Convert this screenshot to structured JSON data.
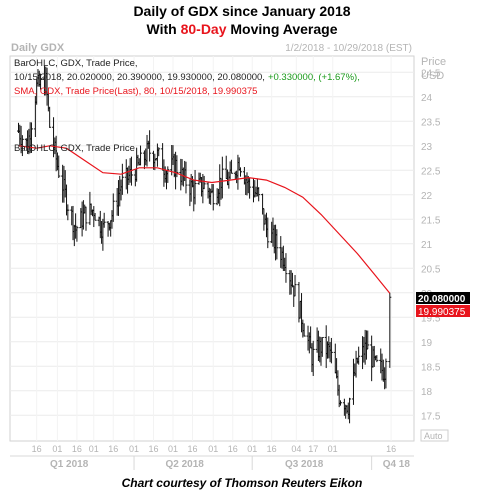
{
  "header": {
    "title_line1": "Daily of GDX since January 2018",
    "title_line2_pre": "With ",
    "title_line2_highlight": "80-Day",
    "title_line2_post": " Moving Average"
  },
  "chart_header": {
    "symbol_label": "Daily GDX",
    "date_range": "1/2/2018 - 10/29/2018 (EST)",
    "price_label": "Price",
    "currency_label": "USD"
  },
  "legend": {
    "bar_line1": "BarOHLC, GDX, Trade Price,",
    "bar_line2_values": "10/15/2018, 20.020000, 20.390000, 19.930000, 20.080000,",
    "bar_line2_change": "+0.330000, (+1.67%),",
    "sma_line": "SMA, GDX, Trade Price(Last), 80, 10/15/2018, 19.990375",
    "inner_label": "BarOHLC, GDX, Trade Price"
  },
  "badges": {
    "last_price": "20.080000",
    "sma_value": "19.990375",
    "auto": "Auto"
  },
  "footer": {
    "caption": "Chart courtesy of Thomson Reuters Eikon"
  },
  "colors": {
    "bars": "#111111",
    "sma": "#e8141c",
    "positive": "#1a9a1a",
    "grid": "#e6e6e6"
  },
  "chart_data": {
    "type": "line",
    "title": "Daily of GDX since January 2018",
    "subtitle": "With 80-Day Moving Average",
    "xlabel": "",
    "ylabel": "",
    "ylim": [
      17.2,
      24.75
    ],
    "yticks": [
      17.5,
      18,
      18.5,
      19,
      19.5,
      20,
      20.5,
      21,
      21.5,
      22,
      22.5,
      23,
      23.5,
      24,
      24.5
    ],
    "xticks_days": [
      "16",
      "01",
      "16",
      "01",
      "16",
      "01",
      "16",
      "01",
      "16",
      "01",
      "16",
      "01",
      "16",
      "04",
      "17",
      "01",
      "16"
    ],
    "quarters": [
      "Q1 2018",
      "Q2 2018",
      "Q3 2018",
      "Q4 18"
    ],
    "series": [
      {
        "name": "BarOHLC, GDX, Trade Price",
        "kind": "ohlc-close",
        "x": [
          "2018-01-02",
          "2018-01-09",
          "2018-01-16",
          "2018-01-23",
          "2018-01-26",
          "2018-02-01",
          "2018-02-08",
          "2018-02-15",
          "2018-02-22",
          "2018-03-01",
          "2018-03-08",
          "2018-03-15",
          "2018-03-22",
          "2018-03-29",
          "2018-04-05",
          "2018-04-12",
          "2018-04-19",
          "2018-04-26",
          "2018-05-03",
          "2018-05-10",
          "2018-05-17",
          "2018-05-24",
          "2018-05-31",
          "2018-06-07",
          "2018-06-14",
          "2018-06-21",
          "2018-06-28",
          "2018-07-05",
          "2018-07-12",
          "2018-07-19",
          "2018-07-26",
          "2018-08-02",
          "2018-08-09",
          "2018-08-16",
          "2018-08-23",
          "2018-08-30",
          "2018-09-06",
          "2018-09-13",
          "2018-09-20",
          "2018-09-27",
          "2018-10-04",
          "2018-10-11",
          "2018-10-15"
        ],
        "values": [
          23.3,
          23.0,
          24.2,
          24.3,
          23.4,
          22.6,
          21.9,
          21.3,
          21.6,
          21.7,
          21.3,
          21.6,
          22.2,
          22.4,
          22.6,
          22.9,
          22.8,
          22.5,
          22.6,
          22.3,
          22.1,
          22.2,
          22.0,
          22.3,
          22.3,
          22.7,
          22.2,
          22.0,
          21.3,
          21.0,
          20.7,
          20.1,
          19.4,
          18.7,
          18.9,
          18.8,
          17.9,
          17.7,
          18.6,
          18.9,
          18.5,
          18.4,
          20.08
        ]
      },
      {
        "name": "SMA, GDX, Trade Price(Last), 80",
        "kind": "line",
        "x": [
          "2018-01-02",
          "2018-01-16",
          "2018-01-26",
          "2018-02-08",
          "2018-02-22",
          "2018-03-08",
          "2018-03-22",
          "2018-04-05",
          "2018-04-19",
          "2018-05-03",
          "2018-05-17",
          "2018-05-31",
          "2018-06-14",
          "2018-06-28",
          "2018-07-12",
          "2018-07-26",
          "2018-08-09",
          "2018-08-23",
          "2018-09-06",
          "2018-09-20",
          "2018-10-04",
          "2018-10-15"
        ],
        "values": [
          23.0,
          22.95,
          23.0,
          22.95,
          22.7,
          22.45,
          22.42,
          22.55,
          22.55,
          22.45,
          22.3,
          22.25,
          22.3,
          22.35,
          22.3,
          22.15,
          21.95,
          21.6,
          21.2,
          20.8,
          20.35,
          19.99
        ]
      }
    ]
  }
}
